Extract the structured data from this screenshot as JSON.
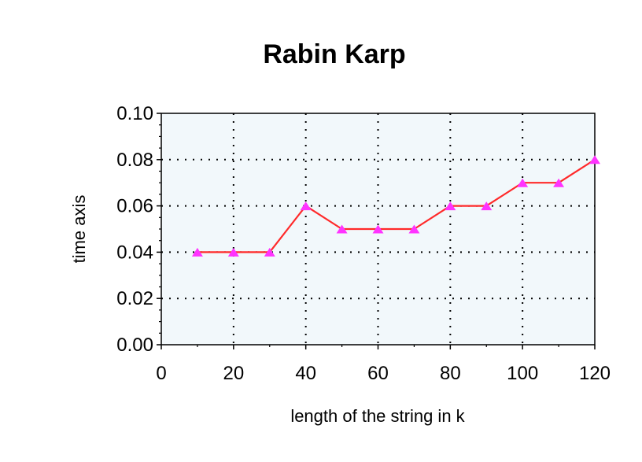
{
  "chart_data": {
    "type": "line",
    "title": "Rabin Karp",
    "xlabel": "length of the string in k",
    "ylabel": "time axis",
    "xlim": [
      0,
      120
    ],
    "ylim": [
      0,
      0.1
    ],
    "x_ticks": [
      "0",
      "20",
      "40",
      "60",
      "80",
      "100",
      "120"
    ],
    "y_ticks": [
      "0.00",
      "0.02",
      "0.04",
      "0.06",
      "0.08",
      "0.10"
    ],
    "grid": true,
    "legend": "none",
    "series": [
      {
        "x": [
          10,
          20,
          30,
          40,
          50,
          60,
          70,
          80,
          90,
          100,
          110,
          120
        ],
        "values": [
          0.04,
          0.04,
          0.04,
          0.06,
          0.05,
          0.05,
          0.05,
          0.06,
          0.06,
          0.07,
          0.07,
          0.08
        ],
        "line_color": "#ff2a2a",
        "marker_color": "#ff33ff",
        "marker": "triangle"
      }
    ],
    "plot_background": "#f2f8fb"
  }
}
